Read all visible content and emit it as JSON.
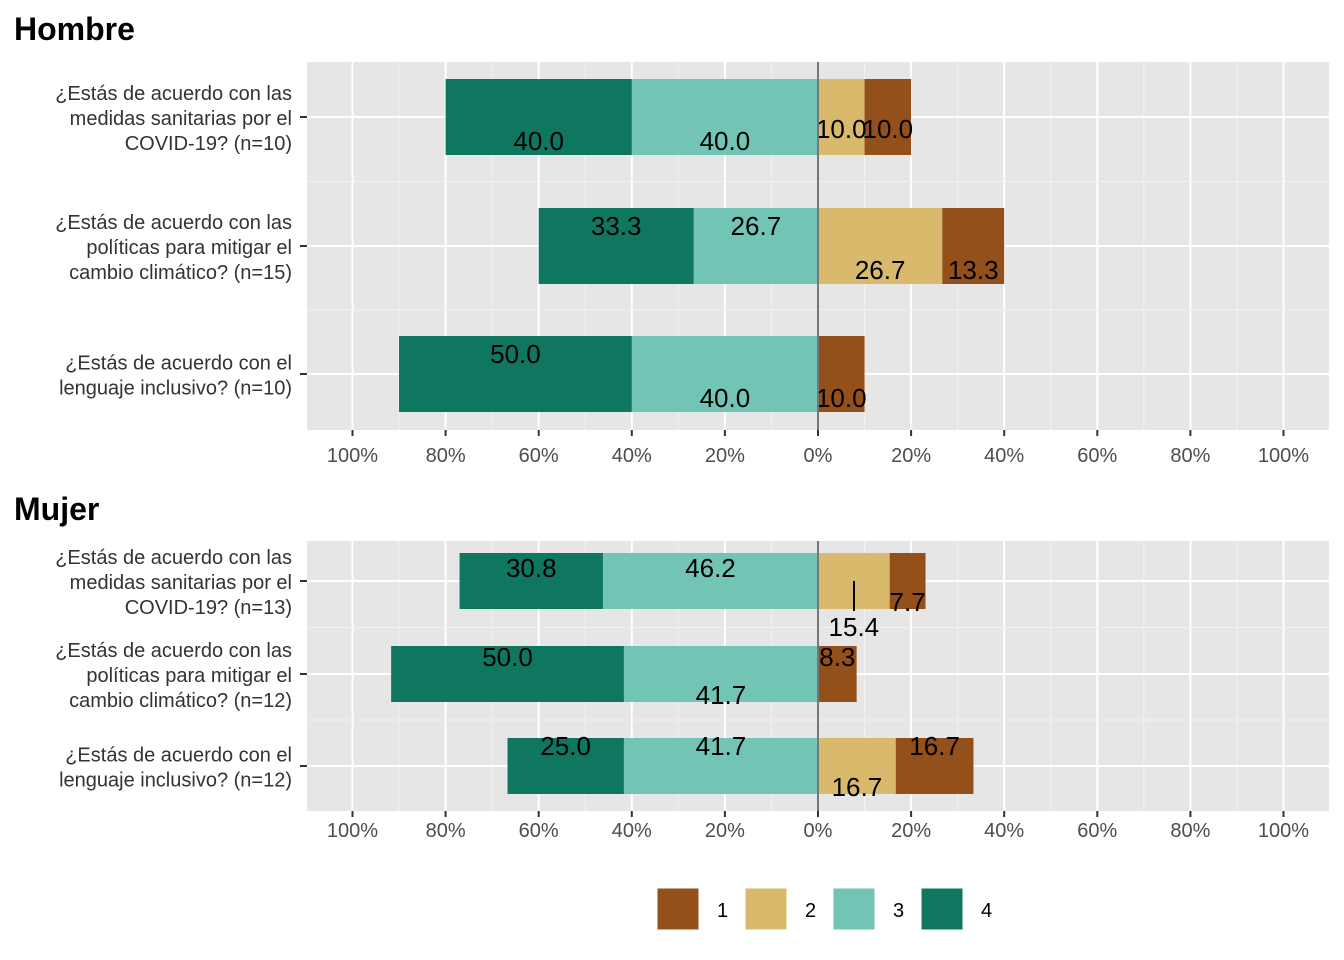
{
  "chart_data": {
    "type": "bar",
    "subtype": "diverging-stacked-horizontal",
    "x_tick_labels": [
      "100%",
      "80%",
      "60%",
      "40%",
      "20%",
      "0%",
      "20%",
      "40%",
      "60%",
      "80%",
      "100%"
    ],
    "xlim": [
      -100,
      100
    ],
    "grid": true,
    "legend_position": "bottom",
    "legend": [
      {
        "key": "1",
        "label": "1",
        "color": "#94501A"
      },
      {
        "key": "2",
        "label": "2",
        "color": "#D9B96C"
      },
      {
        "key": "3",
        "label": "3",
        "color": "#72C4B5"
      },
      {
        "key": "4",
        "label": "4",
        "color": "#0F7660"
      }
    ],
    "panels": [
      {
        "title": "Hombre",
        "items": [
          {
            "label": [
              "¿Estás de acuerdo con las",
              "medidas sanitarias por el",
              "COVID-19? (n=10)"
            ],
            "values": {
              "1": 10.0,
              "2": 10.0,
              "3": 40.0,
              "4": 40.0
            },
            "labels": {
              "1": "10.0",
              "2": "10.0",
              "3": "40.0",
              "4": "40.0"
            }
          },
          {
            "label": [
              "¿Estás de acuerdo con las",
              "políticas para mitigar el",
              "cambio climático? (n=15)"
            ],
            "values": {
              "1": 13.3,
              "2": 26.7,
              "3": 26.7,
              "4": 33.3
            },
            "labels": {
              "1": "13.3",
              "2": "26.7",
              "3": "26.7",
              "4": "33.3"
            }
          },
          {
            "label": [
              "¿Estás de acuerdo con el",
              "lenguaje inclusivo? (n=10)"
            ],
            "values": {
              "1": 10.0,
              "2": 0,
              "3": 40.0,
              "4": 50.0
            },
            "labels": {
              "1": "10.0",
              "3": "40.0",
              "4": "50.0"
            }
          }
        ]
      },
      {
        "title": "Mujer",
        "items": [
          {
            "label": [
              "¿Estás de acuerdo con las",
              "medidas sanitarias por el",
              "COVID-19? (n=13)"
            ],
            "values": {
              "1": 7.7,
              "2": 15.4,
              "3": 46.2,
              "4": 30.8
            },
            "labels": {
              "1": "7.7",
              "2": "15.4",
              "3": "46.2",
              "4": "30.8"
            }
          },
          {
            "label": [
              "¿Estás de acuerdo con las",
              "políticas para mitigar el",
              "cambio climático? (n=12)"
            ],
            "values": {
              "1": 8.3,
              "2": 0,
              "3": 41.7,
              "4": 50.0
            },
            "labels": {
              "1": "8.3",
              "3": "41.7",
              "4": "50.0"
            }
          },
          {
            "label": [
              "¿Estás de acuerdo con el",
              "lenguaje inclusivo? (n=12)"
            ],
            "values": {
              "1": 16.7,
              "2": 16.7,
              "3": 41.7,
              "4": 25.0
            },
            "labels": {
              "1": "16.7",
              "2": "16.7",
              "3": "41.7",
              "4": "25.0"
            }
          }
        ]
      }
    ]
  }
}
